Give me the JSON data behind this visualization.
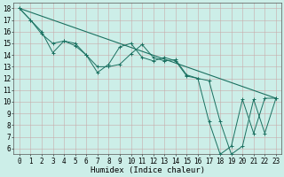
{
  "title": "",
  "xlabel": "Humidex (Indice chaleur)",
  "xlim": [
    -0.5,
    23.5
  ],
  "ylim": [
    5.5,
    18.5
  ],
  "xticks": [
    0,
    1,
    2,
    3,
    4,
    5,
    6,
    7,
    8,
    9,
    10,
    11,
    12,
    13,
    14,
    15,
    16,
    17,
    18,
    19,
    20,
    21,
    22,
    23
  ],
  "yticks": [
    6,
    7,
    8,
    9,
    10,
    11,
    12,
    13,
    14,
    15,
    16,
    17,
    18
  ],
  "background_color": "#cceee8",
  "grid_color": "#c8aaaa",
  "line_color": "#1a7060",
  "line1_x": [
    0,
    1,
    2,
    3,
    4,
    5,
    6,
    7,
    8,
    9,
    10,
    11,
    12,
    13,
    14,
    15,
    16,
    17,
    18,
    19,
    20,
    21,
    22,
    23
  ],
  "line1_y": [
    18,
    17,
    15.8,
    15,
    15.2,
    15,
    14,
    12.5,
    13.2,
    14.7,
    15,
    13.8,
    13.5,
    13.8,
    13.5,
    12.2,
    12,
    8.3,
    5.5,
    6.2,
    10.2,
    7.3,
    10.3,
    10.3
  ],
  "line2_x": [
    0,
    1,
    2,
    3,
    4,
    5,
    6,
    7,
    8,
    9,
    10,
    11,
    12,
    13,
    14,
    15,
    16,
    17,
    18,
    19,
    20,
    21,
    22,
    23
  ],
  "line2_y": [
    18,
    17,
    16,
    14.2,
    15.2,
    14.8,
    14,
    13,
    13,
    13.2,
    14.1,
    14.9,
    13.8,
    13.5,
    13.6,
    12.3,
    12,
    11.8,
    8.3,
    5.5,
    6.2,
    10.2,
    7.3,
    10.3
  ],
  "line3_x": [
    0,
    23
  ],
  "line3_y": [
    18,
    10.3
  ],
  "font_size": 6,
  "tick_font_size": 5.5,
  "xlabel_font_size": 6.5
}
